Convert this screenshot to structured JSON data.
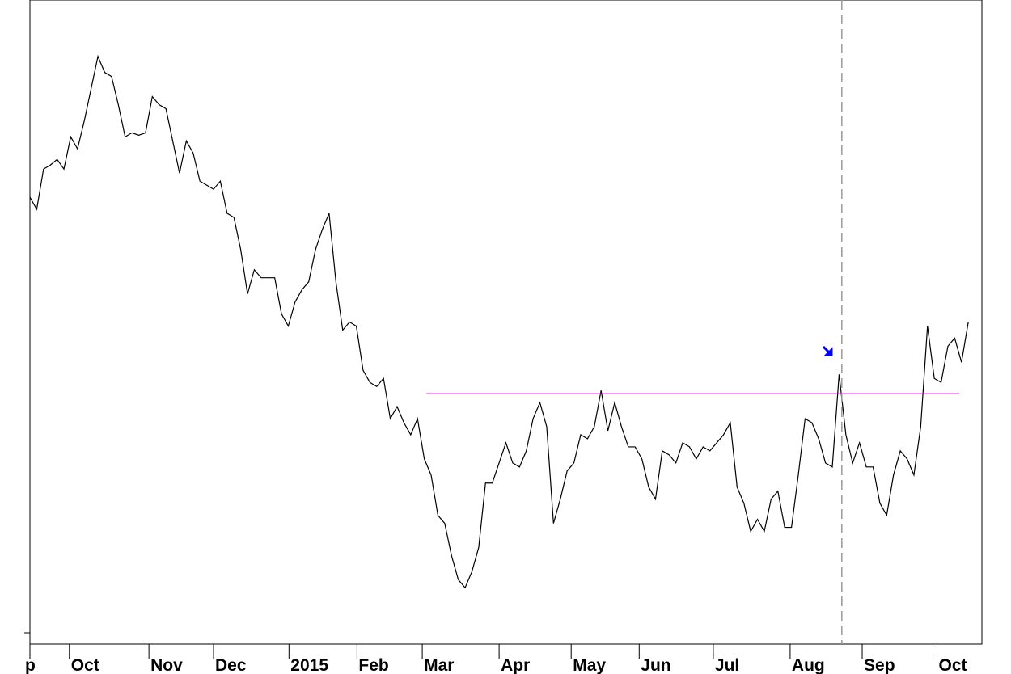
{
  "chart_data": {
    "type": "line",
    "xlim": [
      0,
      140
    ],
    "ylim": [
      0,
      800
    ],
    "xticks": [
      {
        "value": 0,
        "label": "p"
      },
      {
        "value": 5.8,
        "label": "Oct"
      },
      {
        "value": 17.5,
        "label": "Nov"
      },
      {
        "value": 27,
        "label": "Dec"
      },
      {
        "value": 38.1,
        "label": "2015"
      },
      {
        "value": 48.1,
        "label": "Feb"
      },
      {
        "value": 57.7,
        "label": "Mar"
      },
      {
        "value": 69,
        "label": "Apr"
      },
      {
        "value": 79.6,
        "label": "May"
      },
      {
        "value": 89.6,
        "label": "Jun"
      },
      {
        "value": 100.5,
        "label": "Jul"
      },
      {
        "value": 111.8,
        "label": "Aug"
      },
      {
        "value": 122.4,
        "label": "Sep"
      },
      {
        "value": 133.4,
        "label": "Oct"
      }
    ],
    "series": [
      {
        "color": "#000000",
        "values": [
          555,
          540,
          590,
          595,
          602,
          590,
          630,
          615,
          650,
          690,
          730,
          710,
          705,
          670,
          630,
          635,
          632,
          635,
          680,
          670,
          665,
          625,
          585,
          625,
          610,
          575,
          570,
          565,
          575,
          535,
          530,
          490,
          435,
          465,
          455,
          455,
          455,
          410,
          395,
          425,
          440,
          450,
          490,
          515,
          535,
          450,
          390,
          400,
          395,
          340,
          325,
          320,
          330,
          280,
          295,
          275,
          260,
          280,
          230,
          210,
          160,
          150,
          110,
          80,
          70,
          90,
          120,
          200,
          200,
          225,
          250,
          225,
          220,
          240,
          280,
          300,
          270,
          150,
          180,
          215,
          225,
          260,
          255,
          270,
          315,
          265,
          300,
          270,
          245,
          245,
          230,
          195,
          180,
          240,
          235,
          225,
          250,
          245,
          230,
          245,
          240,
          250,
          260,
          275,
          195,
          175,
          140,
          155,
          140,
          180,
          190,
          145,
          145,
          210,
          280,
          275,
          255,
          225,
          220,
          335,
          260,
          225,
          250,
          220,
          220,
          175,
          160,
          210,
          240,
          230,
          210,
          270,
          395,
          330,
          325,
          370,
          380,
          350,
          400
        ]
      }
    ],
    "hline": {
      "value": 311,
      "x": [
        58.3,
        136.7
      ],
      "color": "#c000c0"
    },
    "vline": {
      "x": 119.4,
      "color": "#999999"
    }
  }
}
